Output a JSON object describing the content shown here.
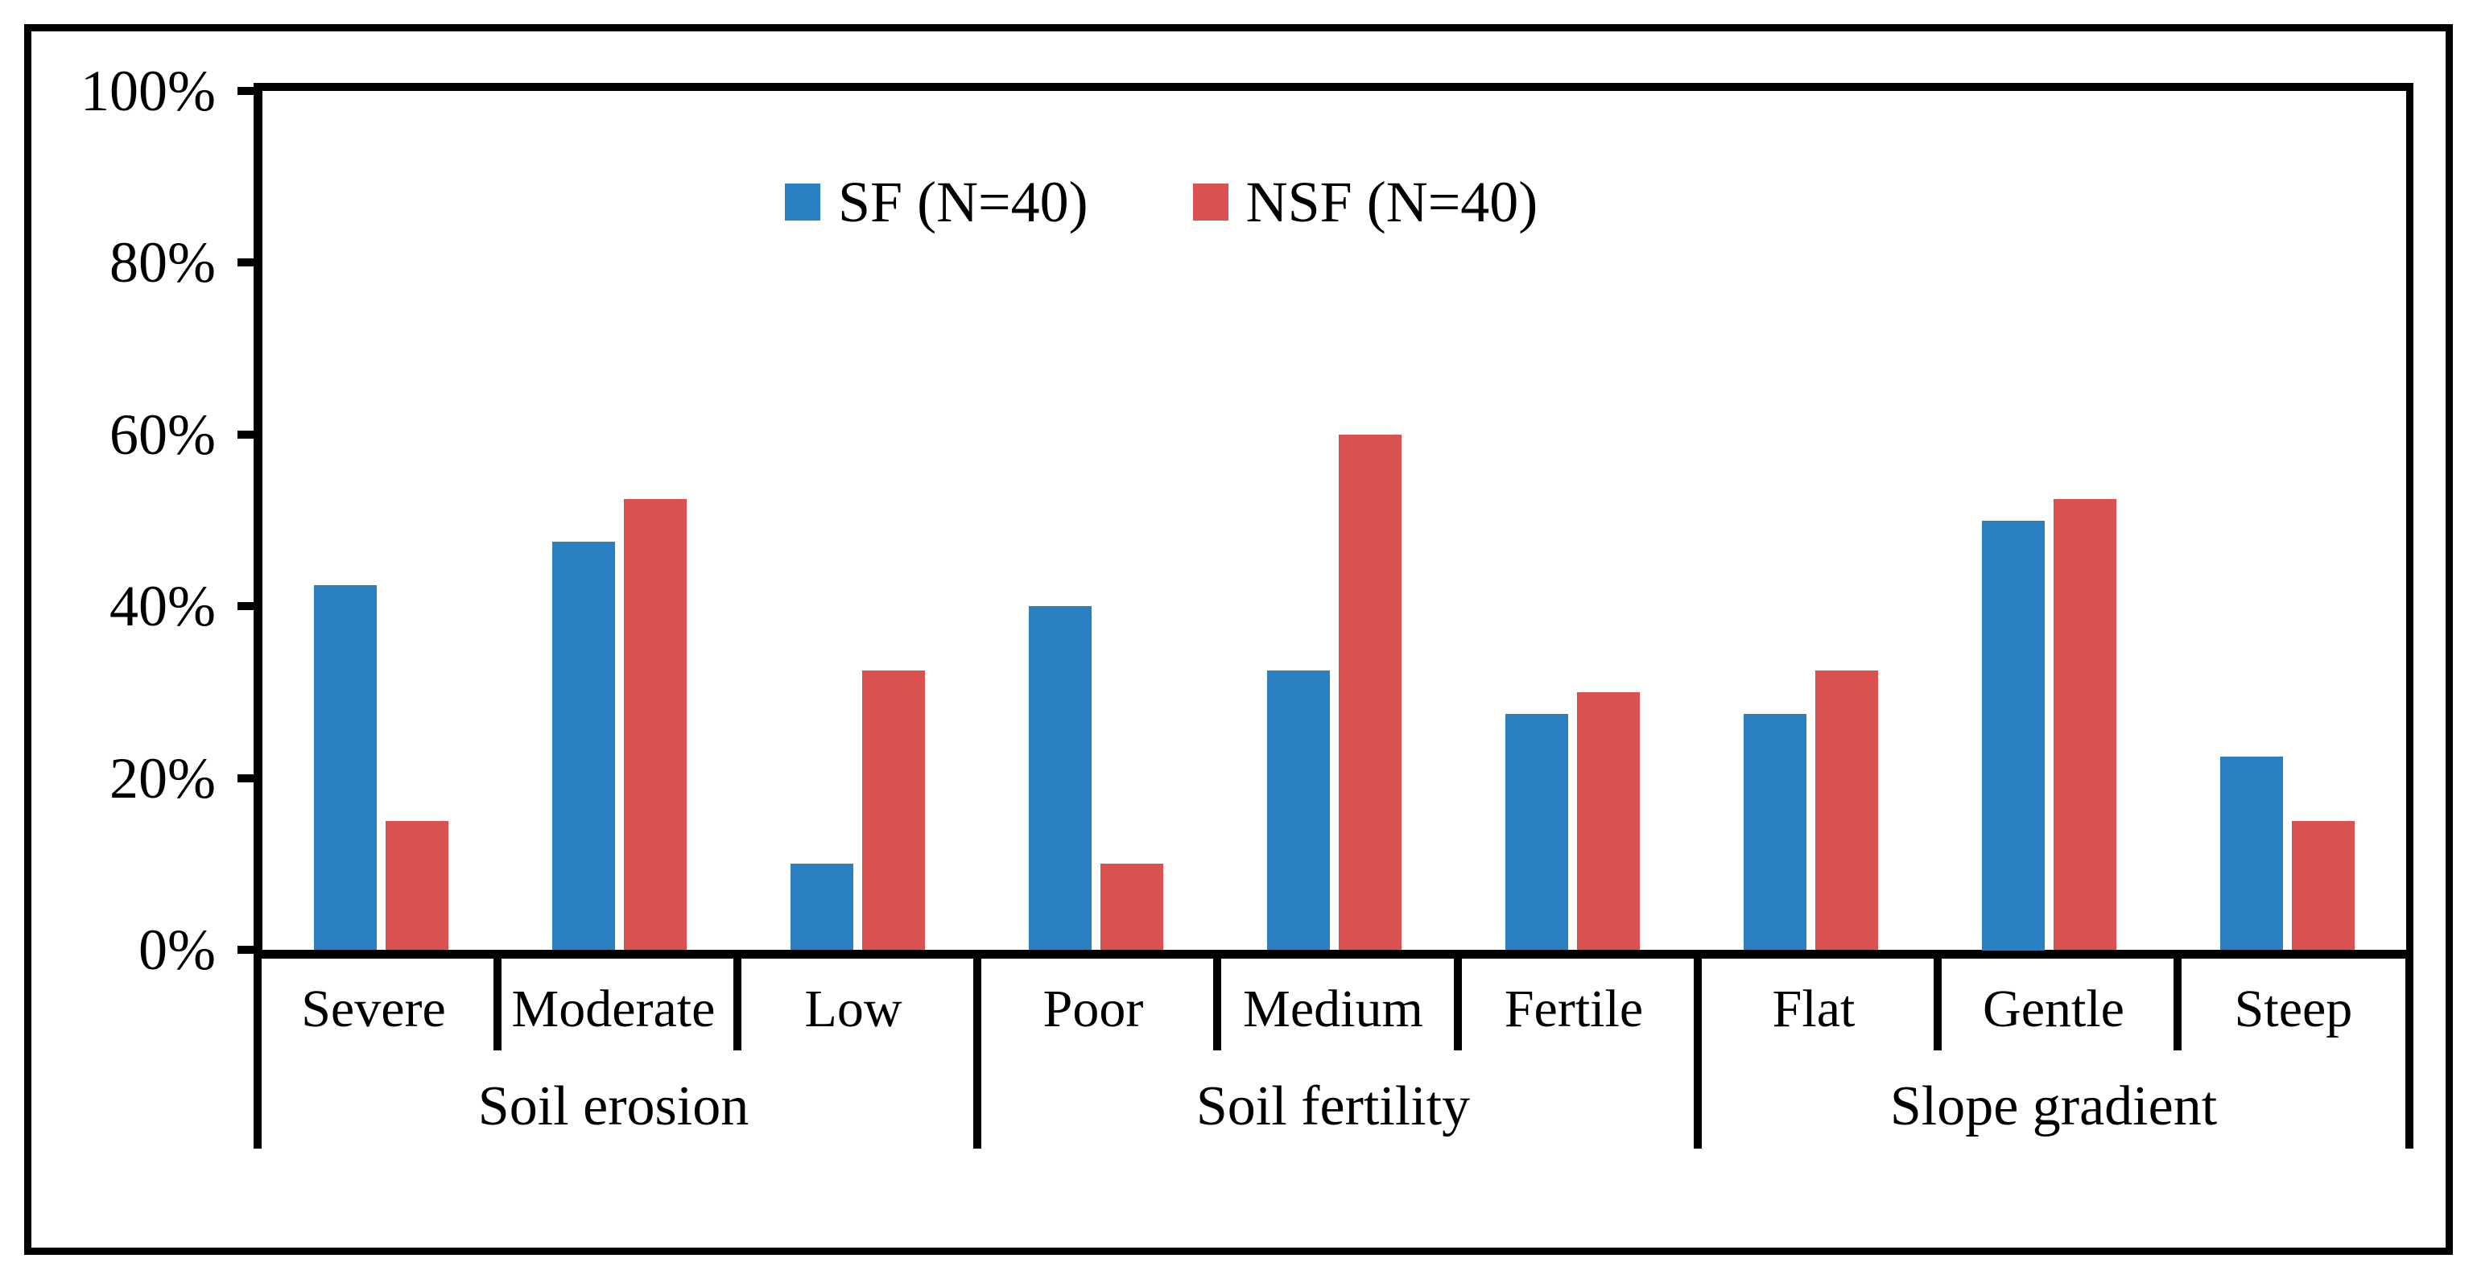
{
  "figure": {
    "background": "#ffffff",
    "border_color": "#000000"
  },
  "legend": {
    "items": [
      {
        "label": "SF (N=40)",
        "color": "#2A80C1"
      },
      {
        "label": "NSF (N=40)",
        "color": "#DB5150"
      }
    ]
  },
  "y_axis": {
    "tick_labels": [
      "0%",
      "20%",
      "40%",
      "60%",
      "80%",
      "100%"
    ],
    "tick_values": [
      0,
      20,
      40,
      60,
      80,
      100
    ]
  },
  "chart_data": {
    "type": "bar",
    "title": "",
    "xlabel": "",
    "ylabel": "",
    "ylim": [
      0,
      100
    ],
    "grid": false,
    "legend_position": "top-center-inside",
    "categories": [
      "Severe",
      "Moderate",
      "Low",
      "Poor",
      "Medium",
      "Fertile",
      "Flat",
      "Gentle",
      "Steep"
    ],
    "groups": [
      {
        "label": "Soil erosion",
        "span": 3
      },
      {
        "label": "Soil fertility",
        "span": 3
      },
      {
        "label": "Slope gradient",
        "span": 3
      }
    ],
    "series": [
      {
        "name": "SF (N=40)",
        "short": "sf",
        "color": "#2A80C1",
        "values": [
          42.5,
          47.5,
          10,
          40,
          32.5,
          27.5,
          27.5,
          50,
          22.5
        ]
      },
      {
        "name": "NSF (N=40)",
        "short": "nsf",
        "color": "#DB5150",
        "values": [
          15,
          52.5,
          32.5,
          10,
          60,
          30,
          32.5,
          52.5,
          15
        ]
      }
    ]
  }
}
